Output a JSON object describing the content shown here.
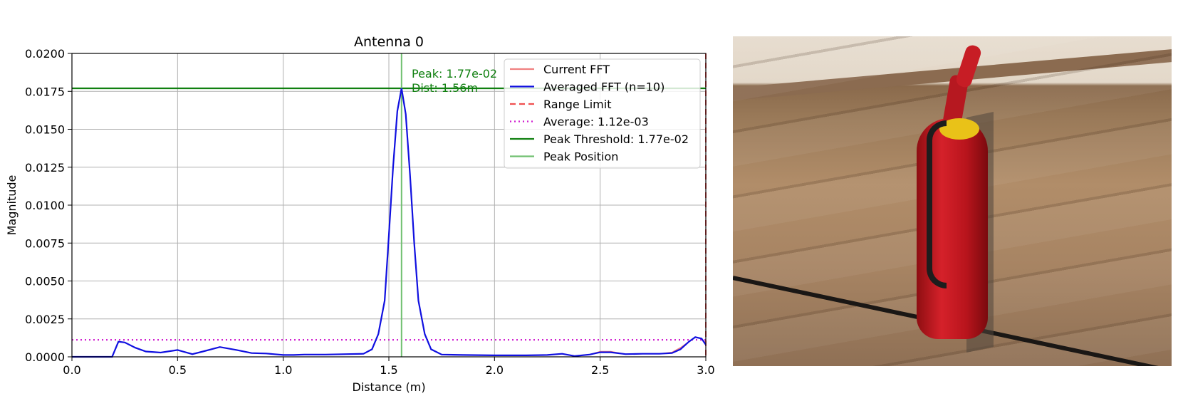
{
  "chart_data": {
    "type": "line",
    "title": "Antenna 0",
    "xlabel": "Distance (m)",
    "ylabel": "Magnitude",
    "xlim": [
      0.0,
      3.0
    ],
    "ylim": [
      0.0,
      0.02
    ],
    "xticks": [
      "0.0",
      "0.5",
      "1.0",
      "1.5",
      "2.0",
      "2.5",
      "3.0"
    ],
    "yticks": [
      "0.0000",
      "0.0025",
      "0.0050",
      "0.0075",
      "0.0100",
      "0.0125",
      "0.0150",
      "0.0175",
      "0.0200"
    ],
    "grid": true,
    "legend_position": "top-right",
    "series": [
      {
        "name": "Current FFT",
        "color": "#f08080",
        "style": "solid",
        "x": [
          0.0,
          0.19,
          0.22,
          0.25,
          0.3,
          0.35,
          0.42,
          0.5,
          0.57,
          0.62,
          0.7,
          0.78,
          0.85,
          0.92,
          1.0,
          1.05,
          1.1,
          1.2,
          1.3,
          1.38,
          1.42,
          1.45,
          1.48,
          1.5,
          1.52,
          1.54,
          1.56,
          1.58,
          1.6,
          1.62,
          1.64,
          1.67,
          1.7,
          1.75,
          1.85,
          2.0,
          2.15,
          2.25,
          2.32,
          2.38,
          2.45,
          2.5,
          2.55,
          2.62,
          2.7,
          2.78,
          2.84,
          2.88,
          2.92,
          2.95,
          2.98,
          3.0
        ],
        "y": [
          0.0,
          0.0,
          0.001,
          0.00095,
          0.0006,
          0.00035,
          0.00028,
          0.00045,
          0.00018,
          0.00035,
          0.00065,
          0.00045,
          0.00025,
          0.00022,
          0.00012,
          0.00012,
          0.00015,
          0.00015,
          0.00018,
          0.0002,
          0.0005,
          0.0015,
          0.0037,
          0.008,
          0.0125,
          0.0162,
          0.0177,
          0.016,
          0.012,
          0.0075,
          0.0037,
          0.0015,
          0.0005,
          0.00015,
          0.00012,
          0.0001,
          0.0001,
          0.00012,
          0.0002,
          5e-05,
          0.00015,
          0.00035,
          0.00035,
          0.00018,
          0.0002,
          0.0002,
          0.0003,
          0.0006,
          0.001,
          0.0013,
          0.0012,
          0.0009
        ]
      },
      {
        "name": "Averaged FFT (n=10)",
        "color": "#1010e0",
        "style": "solid",
        "x": [
          0.0,
          0.19,
          0.22,
          0.25,
          0.3,
          0.35,
          0.42,
          0.5,
          0.57,
          0.62,
          0.7,
          0.78,
          0.85,
          0.92,
          1.0,
          1.05,
          1.1,
          1.2,
          1.3,
          1.38,
          1.42,
          1.45,
          1.48,
          1.5,
          1.52,
          1.54,
          1.56,
          1.58,
          1.6,
          1.62,
          1.64,
          1.67,
          1.7,
          1.75,
          1.85,
          2.0,
          2.15,
          2.25,
          2.32,
          2.38,
          2.45,
          2.5,
          2.55,
          2.62,
          2.7,
          2.78,
          2.84,
          2.88,
          2.92,
          2.95,
          2.98,
          3.0
        ],
        "y": [
          0.0,
          0.0,
          0.001,
          0.00095,
          0.0006,
          0.00035,
          0.00028,
          0.00045,
          0.00018,
          0.00035,
          0.00065,
          0.00045,
          0.00025,
          0.00022,
          0.00012,
          0.00012,
          0.00015,
          0.00015,
          0.00018,
          0.0002,
          0.0005,
          0.0015,
          0.0037,
          0.008,
          0.0125,
          0.0162,
          0.0177,
          0.016,
          0.012,
          0.0075,
          0.0037,
          0.0015,
          0.0005,
          0.00015,
          0.00012,
          0.0001,
          0.0001,
          0.00012,
          0.0002,
          5e-05,
          0.00015,
          0.0003,
          0.0003,
          0.00018,
          0.0002,
          0.0002,
          0.00025,
          0.0005,
          0.001,
          0.0013,
          0.0012,
          0.0008
        ]
      },
      {
        "name": "Range Limit",
        "color": "#f05050",
        "style": "dashed",
        "vertical_x": 3.0
      },
      {
        "name": "Average: 1.12e-03",
        "color": "#d020d0",
        "style": "dotted",
        "horizontal_y": 0.00112
      },
      {
        "name": "Peak Threshold: 1.77e-02",
        "color": "#108010",
        "style": "solid",
        "horizontal_y": 0.0177
      },
      {
        "name": "Peak Position",
        "color": "#70c070",
        "style": "solid",
        "vertical_x": 1.56
      }
    ],
    "annotations": [
      {
        "text": "Peak: 1.77e-02",
        "color": "#108010"
      },
      {
        "text": "Dist: 1.56m",
        "color": "#108010"
      }
    ]
  },
  "photo": {
    "description_icon": "fire-extinguisher-photo"
  }
}
